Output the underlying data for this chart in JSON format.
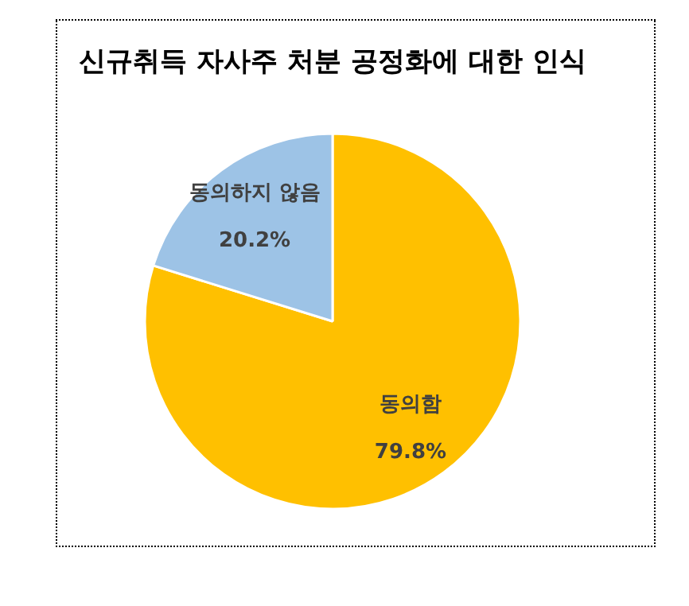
{
  "chart_data": {
    "type": "pie",
    "title": "신규취득 자사주 처분 공정화에 대한 인식",
    "categories": [
      "동의함",
      "동의하지 않음"
    ],
    "values": [
      79.8,
      20.2
    ],
    "value_labels": [
      "79.8%",
      "20.2%"
    ],
    "colors": [
      "#ffc000",
      "#9dc3e6"
    ],
    "legend": false
  }
}
